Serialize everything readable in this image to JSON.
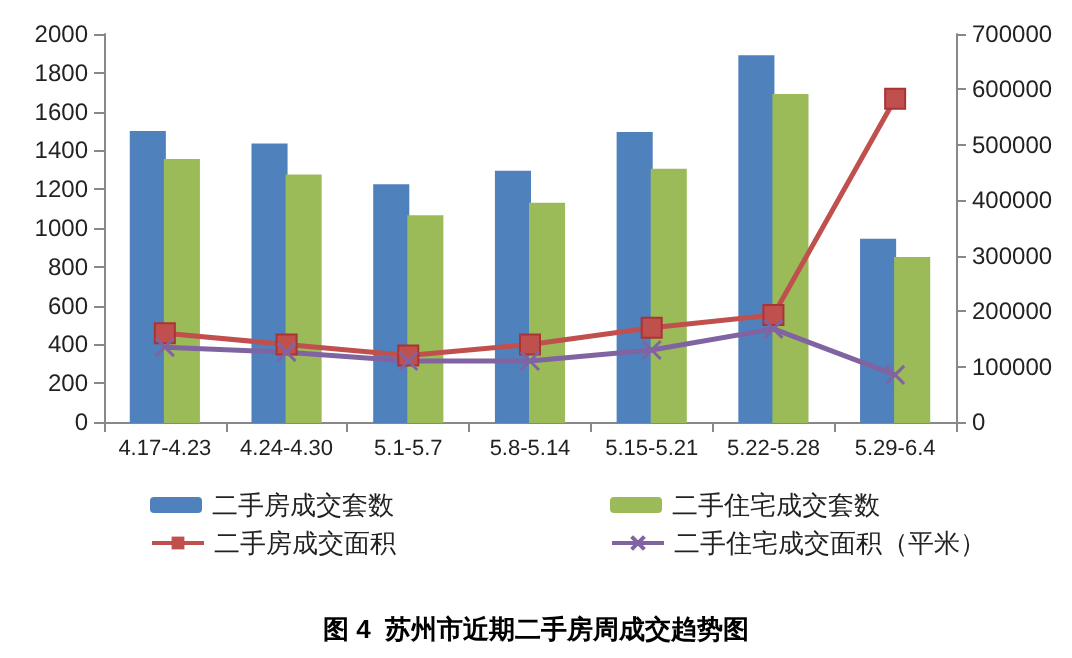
{
  "chart_data": {
    "type": "bar",
    "title": "图 4  苏州市近期二手房周成交趋势图",
    "categories": [
      "4.17-4.23",
      "4.24-4.30",
      "5.1-5.7",
      "5.8-5.14",
      "5.15-5.21",
      "5.22-5.28",
      "5.29-6.4"
    ],
    "series": [
      {
        "name": "二手房成交套数",
        "color": "#4f81bd",
        "values": [
          1495,
          1430,
          1220,
          1290,
          1490,
          1885,
          940
        ]
      },
      {
        "name": "二手住宅成交套数",
        "color": "#9bbb59",
        "values": [
          1350,
          1270,
          1060,
          1125,
          1300,
          1685,
          845
        ]
      },
      {
        "name": "二手房成交面积",
        "type": "line",
        "axis": "y2",
        "marker": "square",
        "color": "#c0504d",
        "values": [
          160000,
          140000,
          120000,
          140000,
          170000,
          193000,
          583000
        ]
      },
      {
        "name": "二手住宅成交面积（平米）",
        "type": "line",
        "axis": "y2",
        "marker": "cross",
        "color": "#8064a2",
        "values": [
          135000,
          126000,
          110000,
          110000,
          130000,
          168000,
          85000
        ]
      }
    ],
    "ylim": [
      0,
      2000
    ],
    "yticks": [
      0,
      200,
      400,
      600,
      800,
      1000,
      1200,
      1400,
      1600,
      1800,
      2000
    ],
    "y2lim": [
      0,
      700000
    ],
    "y2ticks": [
      0,
      100000,
      200000,
      300000,
      400000,
      500000,
      600000,
      700000
    ],
    "grid": false,
    "legend": "bottom"
  }
}
